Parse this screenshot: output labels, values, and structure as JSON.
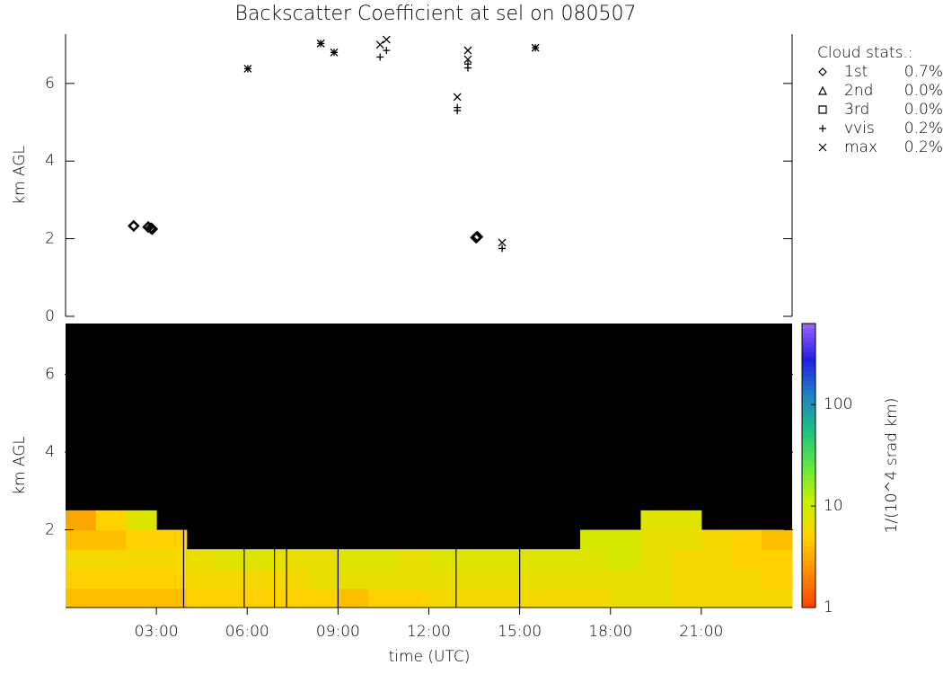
{
  "chart_data": [
    {
      "type": "scatter",
      "title": "Backscatter Coefficient at sel on 080507",
      "y_label": "km AGL",
      "xlim": [
        0,
        24
      ],
      "ylim": [
        0,
        7.27
      ],
      "yticks": [
        0,
        2,
        4,
        6
      ],
      "legend_title": "Cloud stats.:",
      "legend_position": "right",
      "series": [
        {
          "name": "1st",
          "marker": "diamond",
          "color": "#000000",
          "stat": 0.7,
          "stat_label": "0.7%",
          "x": [
            2.25,
            2.73,
            2.82,
            2.86,
            13.56,
            13.6
          ],
          "values": [
            2.33,
            2.3,
            2.27,
            2.25,
            2.03,
            2.05
          ]
        },
        {
          "name": "2nd",
          "marker": "triangle",
          "color": "#000000",
          "stat": 0.0,
          "stat_label": "0.0%",
          "x": [],
          "values": []
        },
        {
          "name": "3rd",
          "marker": "square",
          "color": "#000000",
          "stat": 0.0,
          "stat_label": "0.0%",
          "x": [],
          "values": []
        },
        {
          "name": "vvis",
          "marker": "plus",
          "color": "#000000",
          "stat": 0.2,
          "stat_label": "0.2%",
          "x": [
            6.02,
            8.43,
            8.87,
            10.39,
            10.6,
            12.94,
            12.94,
            13.29,
            13.29,
            14.42,
            15.52
          ],
          "values": [
            6.38,
            7.03,
            6.8,
            6.68,
            6.85,
            5.3,
            5.38,
            6.4,
            6.5,
            1.75,
            6.92
          ]
        },
        {
          "name": "max",
          "marker": "cross",
          "color": "#000000",
          "stat": 0.2,
          "stat_label": "0.2%",
          "x": [
            6.02,
            8.43,
            8.87,
            10.39,
            10.6,
            12.94,
            13.29,
            13.29,
            14.42,
            15.52
          ],
          "values": [
            6.38,
            7.03,
            6.8,
            7.0,
            7.13,
            5.65,
            6.85,
            6.62,
            1.9,
            6.92
          ]
        }
      ]
    },
    {
      "type": "heatmap",
      "x_label": "time (UTC)",
      "y_label": "km AGL",
      "xlim": [
        0,
        24
      ],
      "ylim": [
        0,
        7.31
      ],
      "xticks": [
        {
          "value": 3,
          "label": "03:00"
        },
        {
          "value": 6,
          "label": "06:00"
        },
        {
          "value": 9,
          "label": "09:00"
        },
        {
          "value": 12,
          "label": "12:00"
        },
        {
          "value": 15,
          "label": "15:00"
        },
        {
          "value": 18,
          "label": "18:00"
        },
        {
          "value": 21,
          "label": "21:00"
        }
      ],
      "yticks": [
        2,
        4,
        6
      ],
      "background": "#000000",
      "xbins": [
        0,
        1,
        2,
        3,
        4,
        5,
        6,
        7,
        8,
        9,
        10,
        11,
        12,
        13,
        14,
        15,
        16,
        17,
        18,
        19,
        20,
        21,
        22,
        23,
        24
      ],
      "ybins": [
        0,
        0.5,
        1,
        1.5,
        2,
        2.5
      ],
      "values": [
        [
          4,
          4,
          4,
          4,
          5,
          5,
          5,
          5,
          5,
          4,
          5,
          5,
          6,
          6,
          6,
          6,
          6,
          6,
          7,
          7,
          6,
          6,
          6,
          6
        ],
        [
          5,
          5,
          5,
          5,
          6,
          6,
          6,
          6,
          7,
          7,
          7,
          7,
          7,
          7,
          7,
          7,
          7,
          7,
          7,
          7,
          6,
          6,
          6,
          5
        ],
        [
          6,
          6,
          6,
          6,
          7,
          8,
          8,
          7,
          7,
          8,
          8,
          7,
          8,
          8,
          8,
          8,
          8,
          8,
          9,
          7,
          6,
          6,
          5,
          5
        ],
        [
          4,
          4,
          5,
          5,
          null,
          null,
          null,
          null,
          null,
          null,
          null,
          null,
          null,
          null,
          null,
          null,
          null,
          9,
          9,
          7,
          7,
          6,
          5,
          4
        ],
        [
          3,
          5,
          8,
          null,
          null,
          null,
          null,
          null,
          null,
          null,
          null,
          null,
          null,
          null,
          null,
          null,
          null,
          null,
          null,
          8,
          8,
          null,
          null,
          null
        ]
      ],
      "gaps": [
        3.9,
        5.9,
        6.9,
        7.3,
        9.0,
        12.9,
        15.0
      ],
      "log_color_scale": true,
      "zlim": [
        1,
        630
      ],
      "zticks": [
        1,
        10,
        100
      ],
      "colorbar_label": "1/(10^4 srad km)",
      "colormap": [
        "#ff4000",
        "#ff8c00",
        "#ffd200",
        "#c8f000",
        "#60e840",
        "#20c080",
        "#2080c0",
        "#2020e0",
        "#a060ff"
      ]
    }
  ]
}
